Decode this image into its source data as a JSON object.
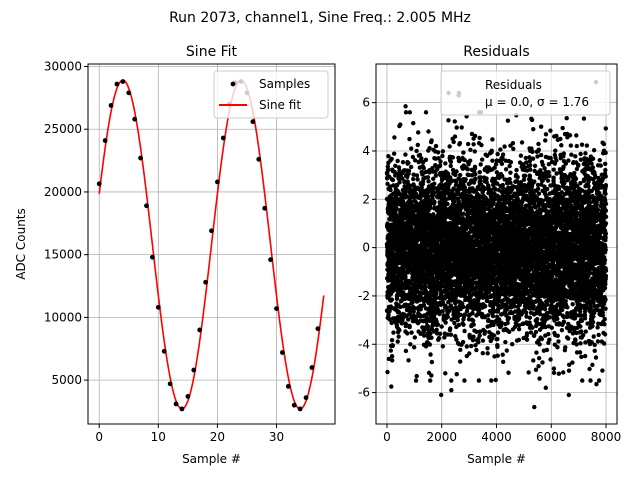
{
  "suptitle": "Run 2073, channel1, Sine Freq.: 2.005 MHz",
  "chart_data": [
    {
      "type": "line",
      "title": "Sine Fit",
      "xlabel": "Sample #",
      "ylabel": "ADC Counts",
      "xlim": [
        -1.9,
        39.9
      ],
      "ylim": [
        1500,
        30200
      ],
      "xticks": [
        0,
        10,
        20,
        30
      ],
      "yticks": [
        5000,
        10000,
        15000,
        20000,
        25000,
        30000
      ],
      "grid": true,
      "legend_position": "top-right",
      "fit": {
        "offset": 15800,
        "amplitude": 13100,
        "period": 20.0,
        "phase_sample": 4.0,
        "x_max": 38
      },
      "series": [
        {
          "name": "Samples",
          "style": "points",
          "color": "#000000",
          "x": [
            0,
            1,
            2,
            3,
            4,
            5,
            6,
            7,
            8,
            9,
            10,
            11,
            12,
            13,
            14,
            15,
            16,
            17,
            18,
            19,
            20,
            21,
            22,
            23,
            24,
            25,
            26,
            27,
            28,
            29,
            30,
            31,
            32,
            33,
            34,
            35,
            36,
            37
          ],
          "y": [
            20650,
            24100,
            26900,
            28600,
            28800,
            27900,
            25800,
            22700,
            18900,
            14800,
            10800,
            7300,
            4700,
            3100,
            2700,
            3700,
            5800,
            9000,
            12800,
            16900,
            20800,
            24300,
            27000,
            28700,
            28800,
            27900,
            25600,
            22600,
            18700,
            14600,
            10700,
            7200,
            4500,
            3000,
            2700,
            3600,
            6000,
            9100
          ]
        },
        {
          "name": "Sine fit",
          "style": "line",
          "color": "#ff0000"
        }
      ]
    },
    {
      "type": "scatter",
      "title": "Residuals",
      "xlabel": "Sample #",
      "xlim": [
        -400,
        8400
      ],
      "ylim": [
        -7.3,
        7.6
      ],
      "xticks": [
        0,
        2000,
        4000,
        6000,
        8000
      ],
      "yticks": [
        -6,
        -4,
        -2,
        0,
        2,
        4,
        6
      ],
      "grid": true,
      "legend_position": "top-right",
      "stats": {
        "mean": 0.0,
        "std": 1.76,
        "n_samples": 8000
      },
      "series": [
        {
          "name": "Residuals",
          "legend_line2": "μ = 0.0, σ = 1.76",
          "color": "#000000",
          "outliers": [
            {
              "x": 680,
              "y": 5.85
            },
            {
              "x": 2250,
              "y": 6.4
            },
            {
              "x": 2620,
              "y": 6.3
            },
            {
              "x": 7630,
              "y": 6.85
            },
            {
              "x": 5380,
              "y": -6.6
            },
            {
              "x": 6640,
              "y": -6.1
            },
            {
              "x": 1980,
              "y": -6.1
            },
            {
              "x": 20,
              "y": -5.15
            },
            {
              "x": 160,
              "y": -5.75
            },
            {
              "x": 2350,
              "y": -5.9
            },
            {
              "x": 5800,
              "y": -5.8
            },
            {
              "x": 7650,
              "y": -5.65
            }
          ]
        }
      ]
    }
  ]
}
